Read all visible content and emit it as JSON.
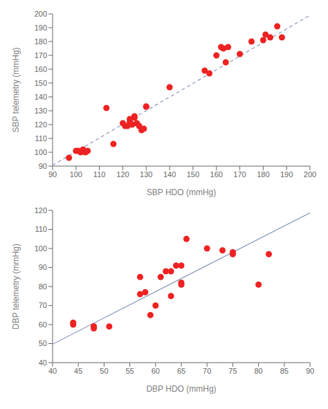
{
  "chart_data": [
    {
      "type": "scatter",
      "xlabel": "SBP HDO (mmHg)",
      "ylabel": "SBP telemetry (mmHg)",
      "xlim": [
        90,
        200
      ],
      "ylim": [
        90,
        200
      ],
      "xticks": [
        90,
        100,
        110,
        120,
        130,
        140,
        150,
        160,
        170,
        180,
        190,
        200
      ],
      "yticks": [
        90,
        100,
        110,
        120,
        130,
        140,
        150,
        160,
        170,
        180,
        190,
        200
      ],
      "grid": false,
      "series": [
        {
          "type": "line",
          "line_style": "dashed",
          "color": "#8899bb",
          "x": [
            90,
            200
          ],
          "values": [
            90.65,
            199.0
          ]
        },
        {
          "type": "scatter",
          "marker": "circle",
          "color": "#ee2222",
          "x": [
            97,
            100,
            101,
            102,
            103,
            104,
            105,
            113,
            116,
            120,
            121,
            122,
            123,
            123,
            124,
            125,
            125,
            126,
            127,
            128,
            129,
            130,
            130,
            140,
            155,
            157,
            160,
            162,
            163,
            164,
            165,
            170,
            175,
            180,
            181,
            183,
            186,
            188
          ],
          "values": [
            96,
            101,
            101,
            100,
            102,
            100,
            101,
            132,
            106,
            121,
            119,
            119,
            122,
            124,
            120,
            125,
            126,
            121,
            119,
            116,
            117,
            133,
            133,
            147,
            159,
            157,
            170,
            176,
            175,
            165,
            176,
            171,
            180,
            181,
            185,
            183,
            191,
            183
          ]
        }
      ]
    },
    {
      "type": "scatter",
      "xlabel": "DBP HDO (mmHg)",
      "ylabel": "DBP telemetry (mmHg)",
      "xlim": [
        40,
        90
      ],
      "ylim": [
        40,
        120
      ],
      "xticks": [
        40,
        45,
        50,
        55,
        60,
        65,
        70,
        75,
        80,
        85,
        90
      ],
      "yticks": [
        40,
        50,
        60,
        70,
        80,
        90,
        100,
        110,
        120
      ],
      "grid": false,
      "series": [
        {
          "type": "line",
          "line_style": "solid",
          "color": "#8899bb",
          "x": [
            40,
            90
          ],
          "values": [
            49.7,
            118.7
          ]
        },
        {
          "type": "scatter",
          "marker": "circle",
          "color": "#ee2222",
          "x": [
            44,
            44,
            48,
            48,
            48,
            51,
            57,
            57,
            58,
            59,
            60,
            61,
            62,
            63,
            63,
            64,
            65,
            65,
            65,
            66,
            70,
            73,
            75,
            75,
            80,
            82
          ],
          "values": [
            60,
            61,
            58,
            59,
            59,
            59,
            85,
            76,
            77,
            65,
            70,
            85,
            88,
            88,
            75,
            91,
            91,
            82,
            81,
            105,
            100,
            99,
            97,
            98,
            81,
            97
          ]
        }
      ]
    }
  ]
}
